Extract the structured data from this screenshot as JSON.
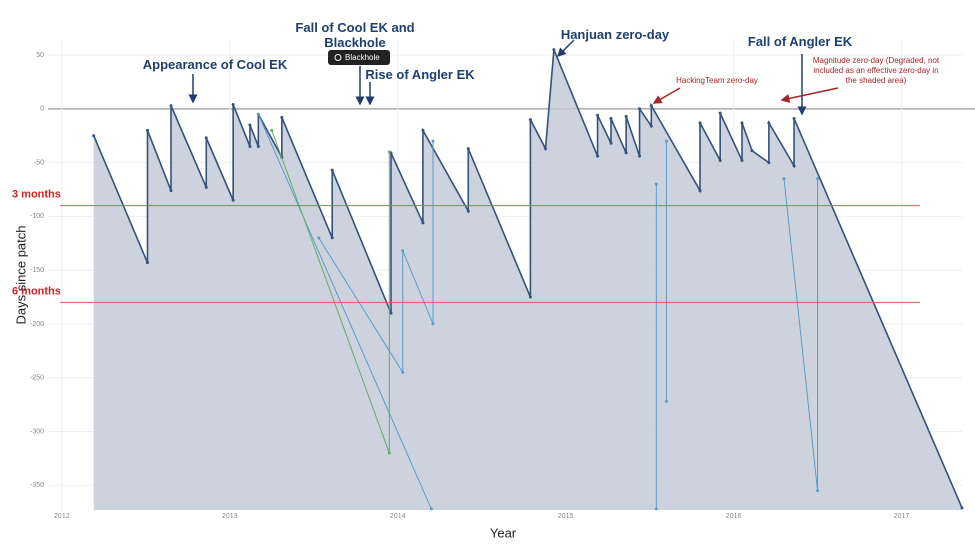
{
  "chart_data": {
    "type": "area",
    "x_label": "Year",
    "y_label": "Days since patch",
    "xlim": [
      2011.87,
      2017.36
    ],
    "ylim": [
      -373,
      64
    ],
    "xticks": [
      2012,
      2013,
      2014,
      2015,
      2016,
      2017
    ],
    "yticks": [
      50,
      0,
      -50,
      -100,
      -150,
      -200,
      -250,
      -300,
      -350
    ],
    "grid": true,
    "fill_color": "#c3cbd8",
    "series": [
      {
        "color": "#34527a",
        "x": [
          2012.19,
          2012.51,
          2012.51,
          2012.65,
          2012.65,
          2012.86,
          2012.86,
          2013.02,
          2013.02,
          2013.12,
          2013.12,
          2013.17,
          2013.17,
          2013.31,
          2013.31,
          2013.61,
          2013.61,
          2013.96,
          2013.96,
          2014.15,
          2014.15,
          2014.42,
          2014.42,
          2014.79,
          2014.79,
          2014.88,
          2014.93,
          2015.19,
          2015.19,
          2015.27,
          2015.27,
          2015.36,
          2015.36,
          2015.44,
          2015.44,
          2015.51,
          2015.51,
          2015.8,
          2015.8,
          2015.92,
          2015.92,
          2016.05,
          2016.05,
          2016.11,
          2016.21,
          2016.21,
          2016.36,
          2016.36,
          2017.36
        ],
        "values": [
          -25,
          -143,
          -20,
          -76,
          3,
          -73,
          -27,
          -85,
          4,
          -35,
          -15,
          -35,
          -5,
          -45,
          -8,
          -120,
          -57,
          -190,
          -41,
          -106,
          -20,
          -95,
          -37,
          -175,
          -10,
          -37,
          55,
          -44,
          -6,
          -32,
          -9,
          -41,
          -7,
          -44,
          0,
          -16,
          3,
          -76,
          -13,
          -48,
          -4,
          -48,
          -13,
          -39,
          -50,
          -13,
          -53,
          -9,
          -371
        ]
      },
      {
        "color": "#5a9cc6",
        "x": [
          2013.17,
          2014.2
        ],
        "values": [
          -5,
          -372
        ]
      },
      {
        "color": "#5a9cc6",
        "x": [
          2013.53,
          2014.03,
          2014.03,
          2014.21,
          2014.21
        ],
        "values": [
          -120,
          -245,
          -132,
          -200,
          -30
        ]
      },
      {
        "color": "#6aa86a",
        "x": [
          2013.25,
          2013.95,
          2013.95
        ],
        "values": [
          -20,
          -320,
          -40
        ]
      },
      {
        "color": "#5a9cc6",
        "x": [
          2015.54,
          2015.54
        ],
        "values": [
          -70,
          -372
        ]
      },
      {
        "color": "#5a9cc6",
        "x": [
          2015.6,
          2015.6
        ],
        "values": [
          -30,
          -272
        ]
      },
      {
        "color": "#5a9cc6",
        "x": [
          2016.3,
          2016.5,
          2016.5
        ],
        "values": [
          -65,
          -355,
          -65
        ]
      }
    ],
    "reference_lines": [
      {
        "label": "3 months",
        "value": -90,
        "color": "#e05a5a"
      },
      {
        "label": "6 months",
        "value": -180,
        "color": "#e05a5a"
      }
    ],
    "badge": "Blackhole",
    "annotations": [
      "Appearance of Cool EK",
      "Fall of Cool EK and Blackhole",
      "Rise of Angler EK",
      "Hanjuan zero-day",
      "Fall of Angler EK",
      "HackingTeam zero-day",
      "Magnitude zero-day (Degraded, not included as an effective zero-day in the shaded area)"
    ]
  }
}
